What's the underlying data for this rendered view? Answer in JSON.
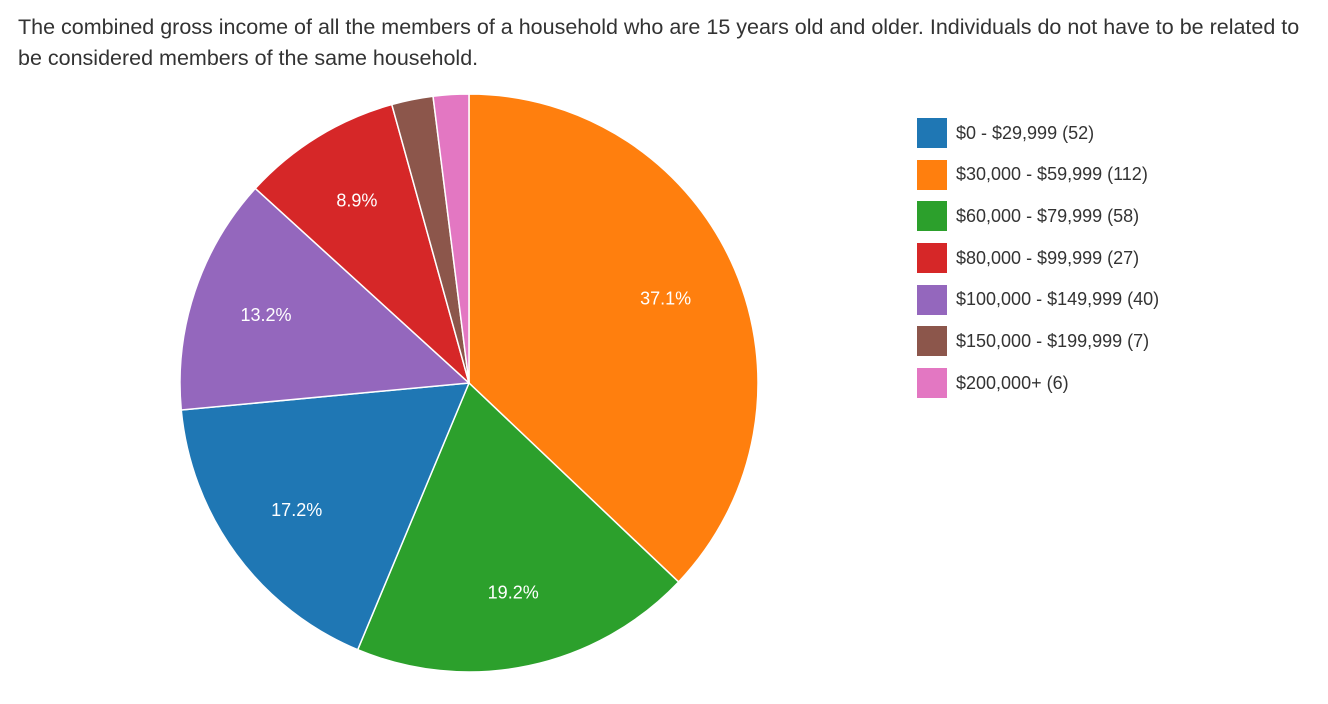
{
  "question": {
    "text": "The combined gross income of all the members of a household who are 15 years old and older. Individuals do not have to be related to be considered members of the same household."
  },
  "chart_data": {
    "type": "pie",
    "title": "",
    "categories": [
      "$0 - $29,999",
      "$30,000 - $59,999",
      "$60,000 - $79,999",
      "$80,000 - $99,999",
      "$100,000 - $149,999",
      "$150,000 - $199,999",
      "$200,000+"
    ],
    "values": [
      52,
      112,
      58,
      27,
      40,
      7,
      6
    ],
    "legend_labels": [
      "$0 - $29,999 (52)",
      "$30,000 - $59,999 (112)",
      "$60,000 - $79,999 (58)",
      "$80,000 - $99,999 (27)",
      "$100,000 - $149,999 (40)",
      "$150,000 - $199,999 (7)",
      "$200,000+ (6)"
    ],
    "slice_labels": [
      "17.2%",
      "37.1%",
      "19.2%",
      "8.9%",
      "13.2%",
      "",
      ""
    ],
    "colors": [
      "#1f77b4",
      "#ff7f0e",
      "#2ca02c",
      "#d62728",
      "#9467bd",
      "#8c564b",
      "#e377c2"
    ],
    "draw_order": [
      1,
      2,
      0,
      4,
      3,
      5,
      6
    ],
    "start": "12 o'clock",
    "direction": "clockwise",
    "legend_position": "right"
  }
}
